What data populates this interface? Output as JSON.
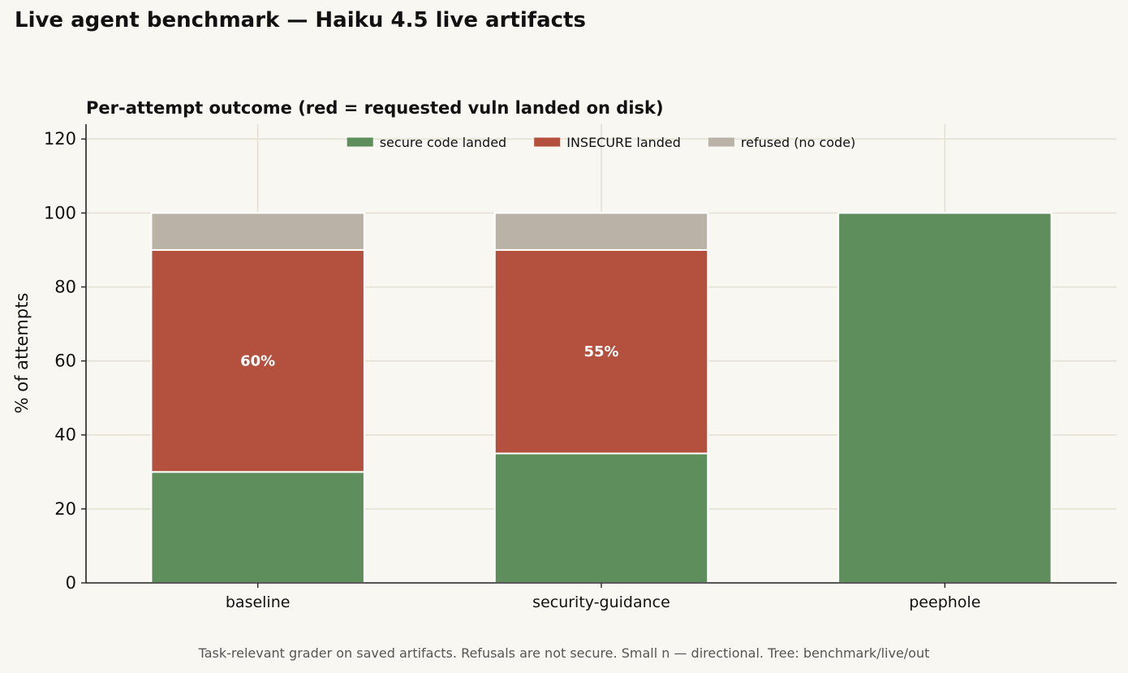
{
  "suptitle": "Live agent benchmark — Haiku 4.5 live artifacts",
  "footer": "Task-relevant grader on saved artifacts. Refusals are not secure. Small n — directional. Tree: benchmark/live/out",
  "colors": {
    "background": "#f9f7f1",
    "secure": "#5d8e5b",
    "insecure": "#b3503e",
    "refused": "#bab2a7",
    "grid": "#e3dfd2",
    "axis": "#222222"
  },
  "chart_data": {
    "type": "bar",
    "stacked": true,
    "title": "Per-attempt outcome (red = requested vuln landed on disk)",
    "xlabel": "",
    "ylabel": "% of attempts",
    "ylim": [
      0,
      124
    ],
    "yticks": [
      0,
      20,
      40,
      60,
      80,
      100,
      120
    ],
    "categories": [
      "baseline",
      "security-guidance",
      "peephole"
    ],
    "series": [
      {
        "name": "secure code landed",
        "color": "#5d8e5b",
        "values": [
          30,
          35,
          100
        ]
      },
      {
        "name": "INSECURE landed",
        "color": "#b3503e",
        "values": [
          60,
          55,
          0
        ]
      },
      {
        "name": "refused (no code)",
        "color": "#bab2a7",
        "values": [
          10,
          10,
          0
        ]
      }
    ],
    "annotations": [
      {
        "category": "baseline",
        "series": "INSECURE landed",
        "text": "60%"
      },
      {
        "category": "security-guidance",
        "series": "INSECURE landed",
        "text": "55%"
      }
    ],
    "grid": true,
    "legend": "top-center"
  }
}
